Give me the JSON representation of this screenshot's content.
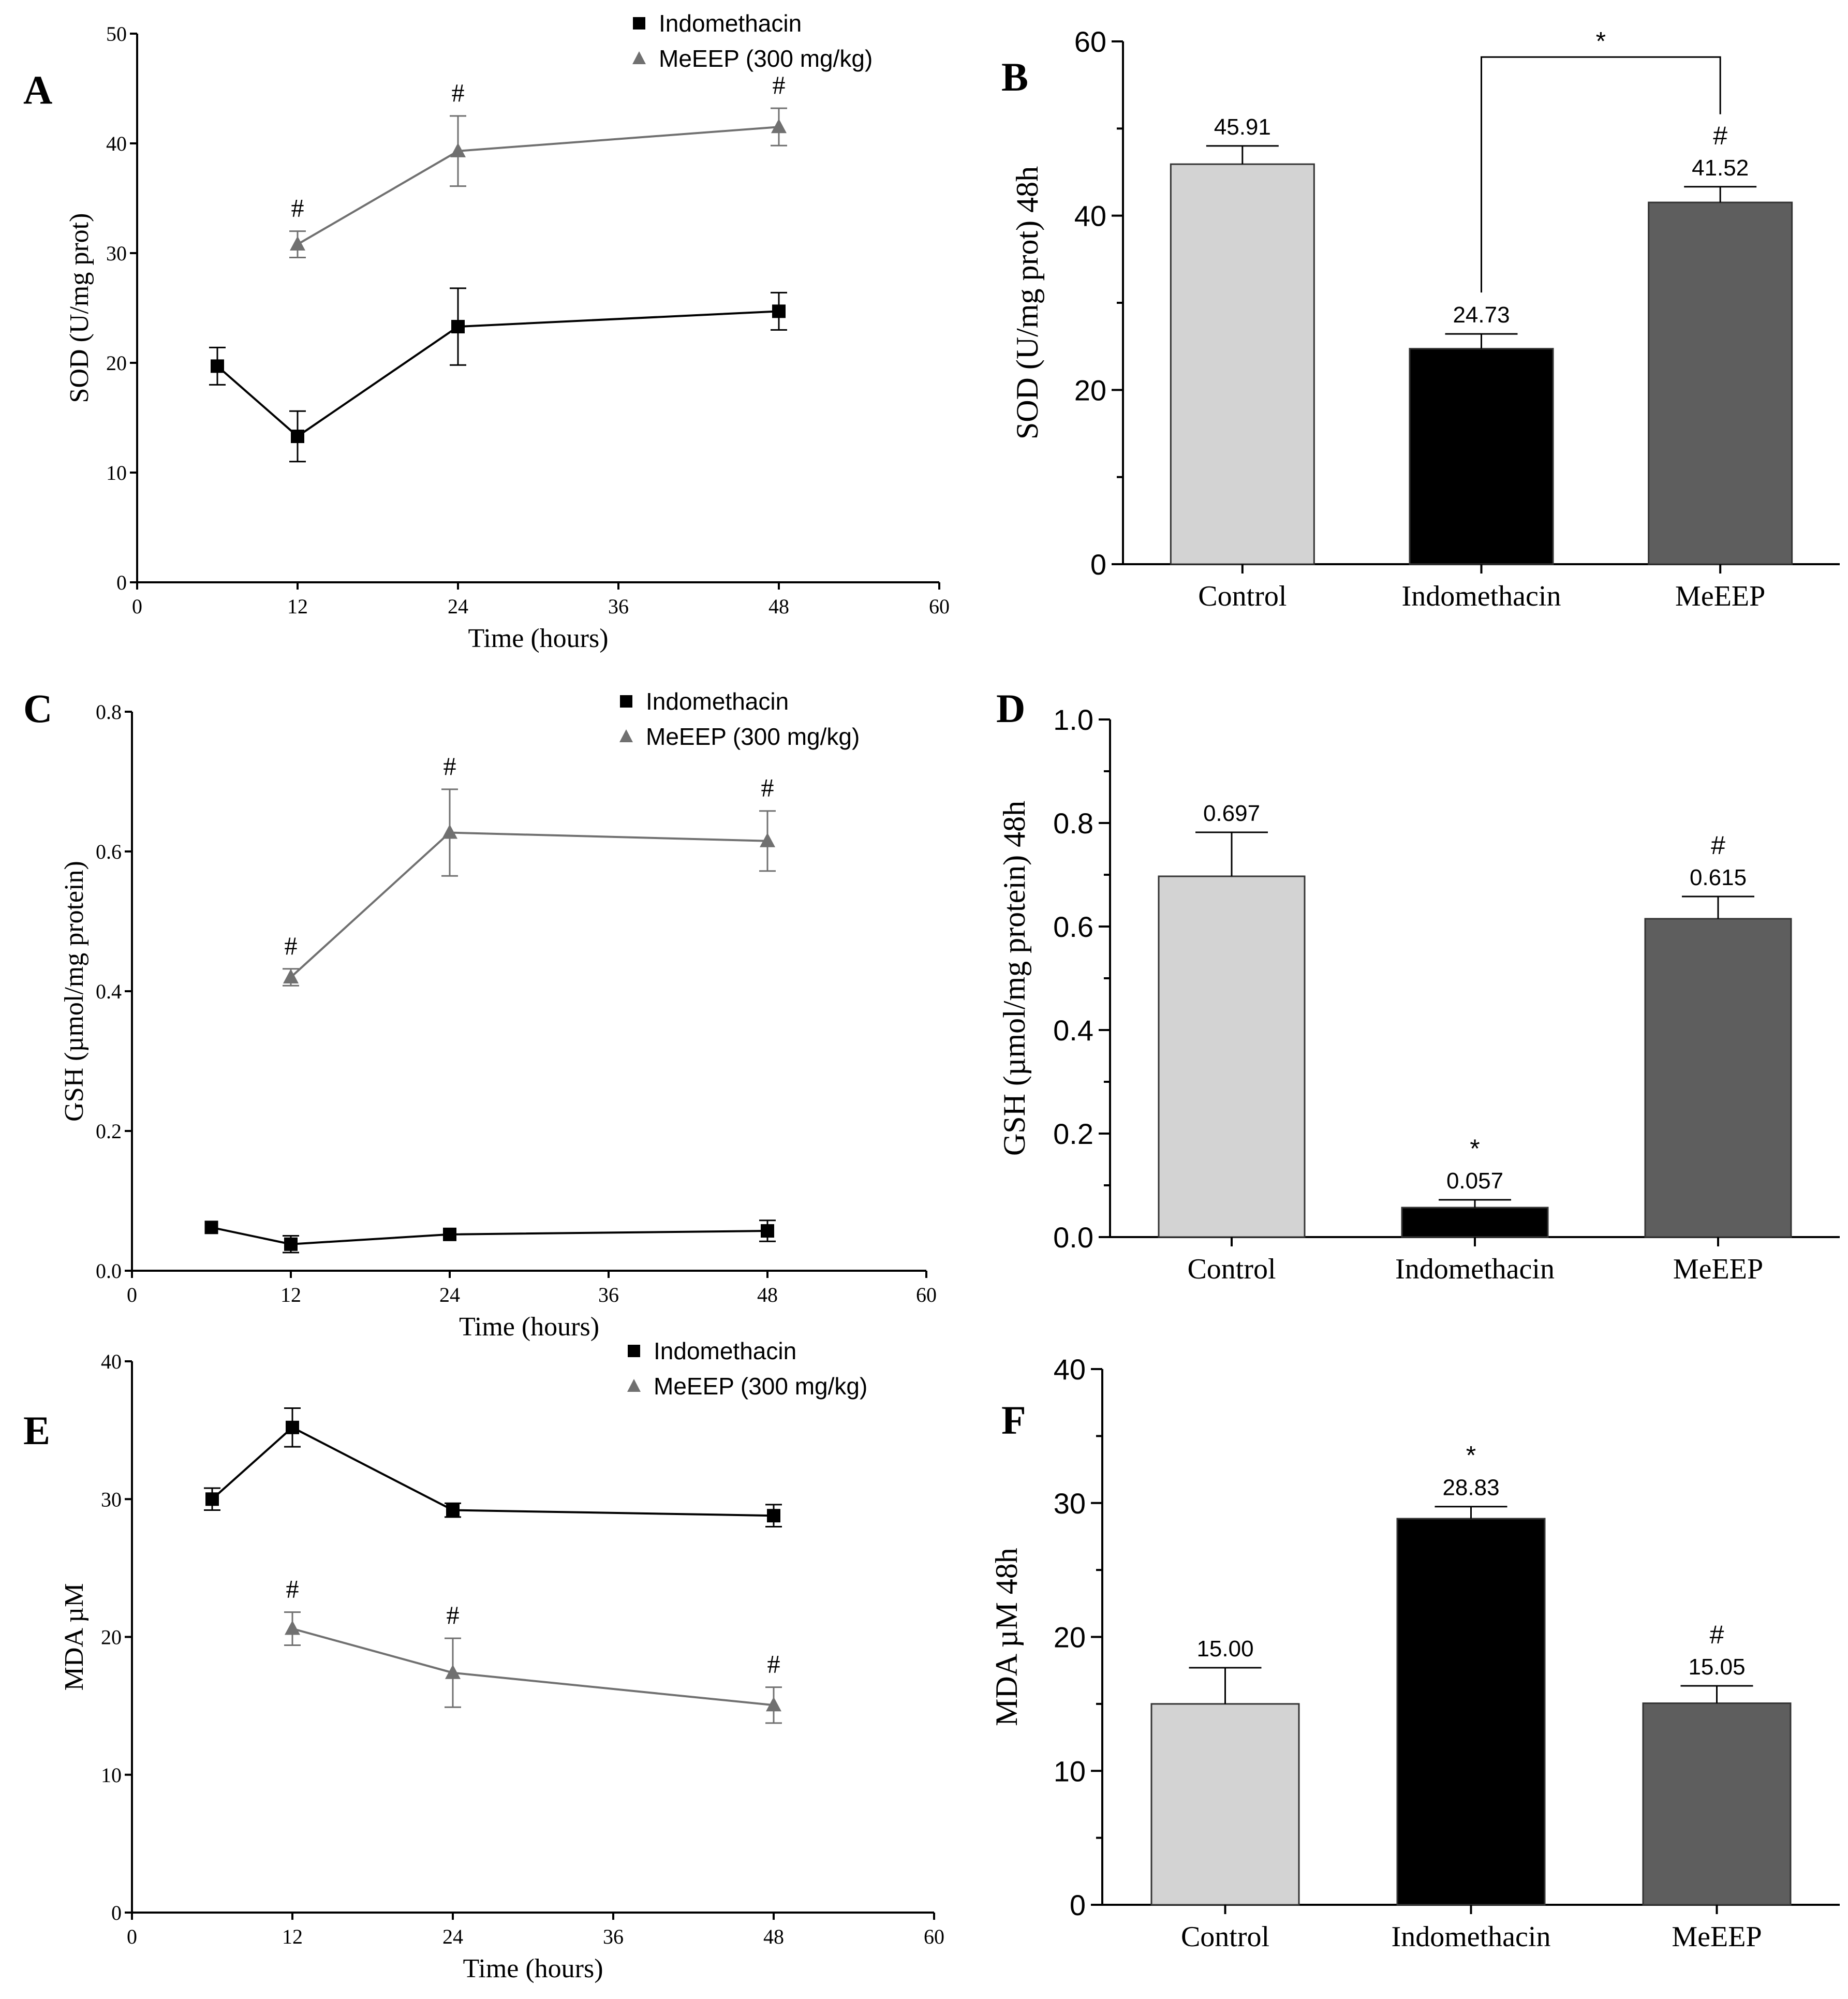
{
  "chart_data": [
    {
      "panel": "A",
      "type": "line",
      "xlabel": "Time (hours)",
      "ylabel": "SOD (U/mg prot)",
      "xlim": [
        0,
        60
      ],
      "ylim": [
        0,
        50
      ],
      "xticks": [
        0,
        12,
        24,
        36,
        48,
        60
      ],
      "yticks": [
        0,
        10,
        20,
        30,
        40,
        50
      ],
      "legend_position": "top-right",
      "series": [
        {
          "name": "Indomethacin",
          "marker": "square",
          "color": "#000000",
          "points": [
            {
              "x": 6,
              "y": 19.7,
              "err": 1.7
            },
            {
              "x": 12,
              "y": 13.3,
              "err": 2.3
            },
            {
              "x": 24,
              "y": 23.3,
              "err": 3.5
            },
            {
              "x": 48,
              "y": 24.7,
              "err": 1.7
            }
          ]
        },
        {
          "name": "MeEEP (300 mg/kg)",
          "marker": "triangle",
          "color": "#707070",
          "points": [
            {
              "x": 12,
              "y": 30.8,
              "err": 1.2,
              "mark": "#"
            },
            {
              "x": 24,
              "y": 39.3,
              "err": 3.2,
              "mark": "#"
            },
            {
              "x": 48,
              "y": 41.5,
              "err": 1.7,
              "mark": "#"
            }
          ]
        }
      ]
    },
    {
      "panel": "B",
      "type": "bar",
      "ylabel": "SOD (U/mg prot) 48h",
      "ylim": [
        0,
        60
      ],
      "yticks": [
        0,
        20,
        40,
        60
      ],
      "categories": [
        "Control",
        "Indomethacin",
        "MeEEP"
      ],
      "bars": [
        {
          "category": "Control",
          "value": 45.91,
          "err": 2.1,
          "label": "45.91",
          "mark": "",
          "color": "#d3d3d3"
        },
        {
          "category": "Indomethacin",
          "value": 24.73,
          "err": 1.7,
          "label": "24.73",
          "mark": "",
          "color": "#000000"
        },
        {
          "category": "MeEEP",
          "value": 41.52,
          "err": 1.8,
          "label": "41.52",
          "mark": "#",
          "color": "#5e5e5e"
        }
      ],
      "bracket": {
        "from": "Indomethacin",
        "to": "MeEEP",
        "label": "*"
      }
    },
    {
      "panel": "C",
      "type": "line",
      "xlabel": "Time (hours)",
      "ylabel": "GSH (µmol/mg protein)",
      "xlim": [
        0,
        60
      ],
      "ylim": [
        0,
        0.8
      ],
      "xticks": [
        0,
        12,
        24,
        36,
        48,
        60
      ],
      "yticks": [
        0.0,
        0.2,
        0.4,
        0.6,
        0.8
      ],
      "legend_position": "top-right",
      "series": [
        {
          "name": "Indomethacin",
          "marker": "square",
          "color": "#000000",
          "points": [
            {
              "x": 6,
              "y": 0.062,
              "err": 0.0
            },
            {
              "x": 12,
              "y": 0.038,
              "err": 0.012
            },
            {
              "x": 24,
              "y": 0.052,
              "err": 0.0
            },
            {
              "x": 48,
              "y": 0.057,
              "err": 0.015
            }
          ]
        },
        {
          "name": "MeEEP (300 mg/kg)",
          "marker": "triangle",
          "color": "#707070",
          "points": [
            {
              "x": 12,
              "y": 0.42,
              "err": 0.012,
              "mark": "#"
            },
            {
              "x": 24,
              "y": 0.627,
              "err": 0.062,
              "mark": "#"
            },
            {
              "x": 48,
              "y": 0.615,
              "err": 0.043,
              "mark": "#"
            }
          ]
        }
      ]
    },
    {
      "panel": "D",
      "type": "bar",
      "ylabel": "GSH (µmol/mg protein) 48h",
      "ylim": [
        0,
        1.0
      ],
      "yticks": [
        0.0,
        0.2,
        0.4,
        0.6,
        0.8,
        1.0
      ],
      "categories": [
        "Control",
        "Indomethacin",
        "MeEEP"
      ],
      "bars": [
        {
          "category": "Control",
          "value": 0.697,
          "err": 0.085,
          "label": "0.697",
          "mark": "",
          "color": "#d3d3d3"
        },
        {
          "category": "Indomethacin",
          "value": 0.057,
          "err": 0.015,
          "label": "0.057",
          "mark": "*",
          "color": "#000000"
        },
        {
          "category": "MeEEP",
          "value": 0.615,
          "err": 0.043,
          "label": "0.615",
          "mark": "#",
          "color": "#5e5e5e"
        }
      ]
    },
    {
      "panel": "E",
      "type": "line",
      "xlabel": "Time (hours)",
      "ylabel": "MDA µM",
      "xlim": [
        0,
        60
      ],
      "ylim": [
        0,
        40
      ],
      "xticks": [
        0,
        12,
        24,
        36,
        48,
        60
      ],
      "yticks": [
        0,
        10,
        20,
        30,
        40
      ],
      "legend_position": "top-right",
      "series": [
        {
          "name": "Indomethacin",
          "marker": "square",
          "color": "#000000",
          "points": [
            {
              "x": 6,
              "y": 30.0,
              "err": 0.8
            },
            {
              "x": 12,
              "y": 35.2,
              "err": 1.4
            },
            {
              "x": 24,
              "y": 29.2,
              "err": 0.5
            },
            {
              "x": 48,
              "y": 28.8,
              "err": 0.8
            }
          ]
        },
        {
          "name": "MeEEP (300 mg/kg)",
          "marker": "triangle",
          "color": "#707070",
          "points": [
            {
              "x": 12,
              "y": 20.6,
              "err": 1.2,
              "mark": "#"
            },
            {
              "x": 24,
              "y": 17.4,
              "err": 2.5,
              "mark": "#"
            },
            {
              "x": 48,
              "y": 15.05,
              "err": 1.3,
              "mark": "#"
            }
          ]
        }
      ]
    },
    {
      "panel": "F",
      "type": "bar",
      "ylabel": "MDA µM 48h",
      "ylim": [
        0,
        40
      ],
      "yticks": [
        0,
        10,
        20,
        30,
        40
      ],
      "categories": [
        "Control",
        "Indomethacin",
        "MeEEP"
      ],
      "bars": [
        {
          "category": "Control",
          "value": 15.0,
          "err": 2.7,
          "label": "15.00",
          "mark": "",
          "color": "#d3d3d3"
        },
        {
          "category": "Indomethacin",
          "value": 28.83,
          "err": 0.9,
          "label": "28.83",
          "mark": "*",
          "color": "#000000"
        },
        {
          "category": "MeEEP",
          "value": 15.05,
          "err": 1.3,
          "label": "15.05",
          "mark": "#",
          "color": "#5e5e5e"
        }
      ]
    }
  ]
}
